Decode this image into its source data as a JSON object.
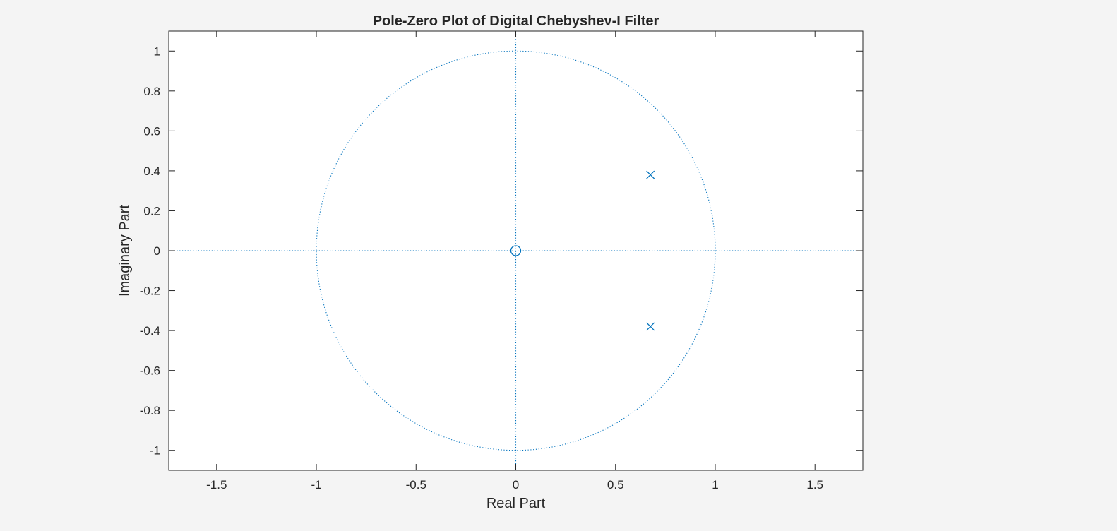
{
  "chart_data": {
    "type": "scatter",
    "title": "Pole-Zero Plot of Digital Chebyshev-I Filter",
    "xlabel": "Real Part",
    "ylabel": "Imaginary Part",
    "xlim": [
      -1.74,
      1.74
    ],
    "ylim": [
      -1.1,
      1.1
    ],
    "xticks": [
      -1.5,
      -1,
      -0.5,
      0,
      0.5,
      1,
      1.5
    ],
    "xtick_labels": [
      "-1.5",
      "-1",
      "-0.5",
      "0",
      "0.5",
      "1",
      "1.5"
    ],
    "yticks": [
      1,
      0.8,
      0.6,
      0.4,
      0.2,
      0,
      -0.2,
      -0.4,
      -0.6,
      -0.8,
      -1
    ],
    "ytick_labels": [
      "1",
      "0.8",
      "0.6",
      "0.4",
      "0.2",
      "0",
      "-0.2",
      "-0.4",
      "-0.6",
      "-0.8",
      "-1"
    ],
    "grid": false,
    "unit_circle": {
      "radius": 1,
      "style": "dotted"
    },
    "zeros": [
      {
        "x": 0,
        "y": 0
      }
    ],
    "poles": [
      {
        "x": 0.675,
        "y": 0.38
      },
      {
        "x": 0.675,
        "y": -0.38
      }
    ],
    "colors": {
      "marker": "#0072BD",
      "axes": "#262626",
      "plot_background": "#ffffff",
      "figure_background": "#f4f4f4"
    }
  }
}
